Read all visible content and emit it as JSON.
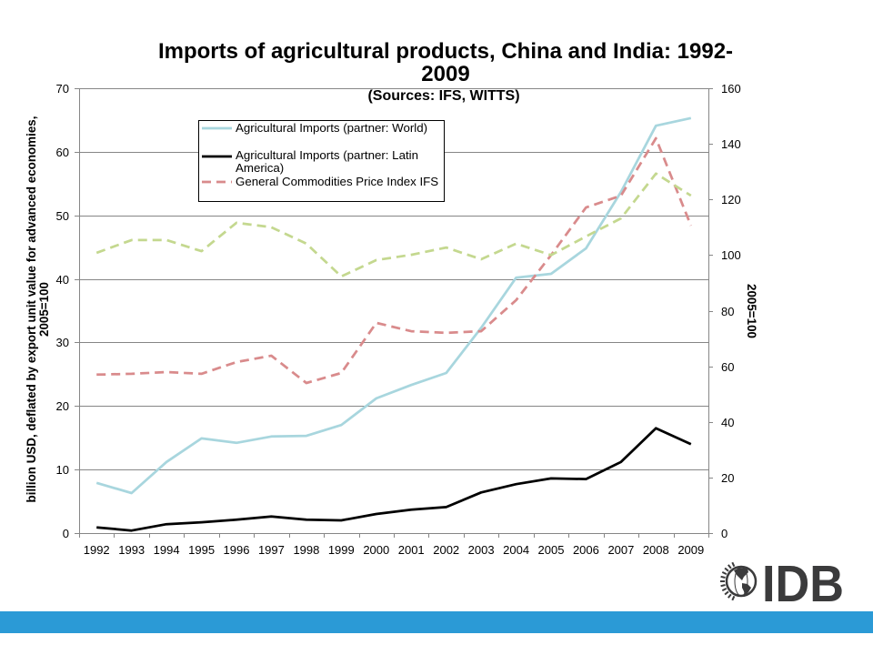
{
  "chart_data": {
    "type": "line",
    "title": "Imports of agricultural products, China and India: 1992-2009",
    "subtitle": "(Sources: IFS, WITTS)",
    "ylabel": "billion USD, deflated by export unit value for advanced economies, 2005=100",
    "y2label": "2005=100",
    "categories": [
      "1992",
      "1993",
      "1994",
      "1995",
      "1996",
      "1997",
      "1998",
      "1999",
      "2000",
      "2001",
      "2002",
      "2003",
      "2004",
      "2005",
      "2006",
      "2007",
      "2008",
      "2009"
    ],
    "ylim": [
      0,
      70
    ],
    "yticks": [
      0,
      10,
      20,
      30,
      40,
      50,
      60,
      70
    ],
    "y2lim": [
      0,
      160
    ],
    "y2ticks": [
      0,
      20,
      40,
      60,
      80,
      100,
      120,
      140,
      160
    ],
    "grid": true,
    "legend": "top-left",
    "series": [
      {
        "name": "Agricultural Imports (partner: World)",
        "axis": "left",
        "line": "solid",
        "color": "#a8d6de",
        "values": [
          7.9,
          6.3,
          11.2,
          14.9,
          14.2,
          15.2,
          15.3,
          17.0,
          21.2,
          23.3,
          25.2,
          32.3,
          40.2,
          40.8,
          44.8,
          53.7,
          64.1,
          65.3
        ]
      },
      {
        "name": "Agricultural Imports (partner: Latin America)",
        "axis": "left",
        "line": "solid",
        "color": "#000000",
        "values": [
          0.9,
          0.4,
          1.4,
          1.7,
          2.1,
          2.6,
          2.1,
          2.0,
          3.0,
          3.7,
          4.1,
          6.4,
          7.7,
          8.6,
          8.5,
          11.2,
          16.5,
          14.0
        ]
      },
      {
        "name": "General Commodities Price Index IFS",
        "axis": "right",
        "line": "dashed",
        "color": "#d98b8c",
        "values": [
          57.0,
          57.3,
          57.9,
          57.3,
          61.5,
          63.8,
          54.0,
          57.6,
          75.6,
          72.6,
          72.0,
          72.6,
          83.8,
          100.0,
          117.1,
          121.4,
          142.0,
          110.6
        ]
      },
      {
        "axis": "right",
        "line": "dashed",
        "color": "#c4d88f",
        "values": [
          100.8,
          105.4,
          105.4,
          101.4,
          111.6,
          110.0,
          104.1,
          92.3,
          98.2,
          100.1,
          102.7,
          98.5,
          104.1,
          100.0,
          106.7,
          113.2,
          129.3,
          121.4
        ]
      }
    ]
  },
  "logo": {
    "text": "IDB",
    "color": "#3b3b3c"
  },
  "footer_band": {
    "color": "#2b9ad6"
  }
}
